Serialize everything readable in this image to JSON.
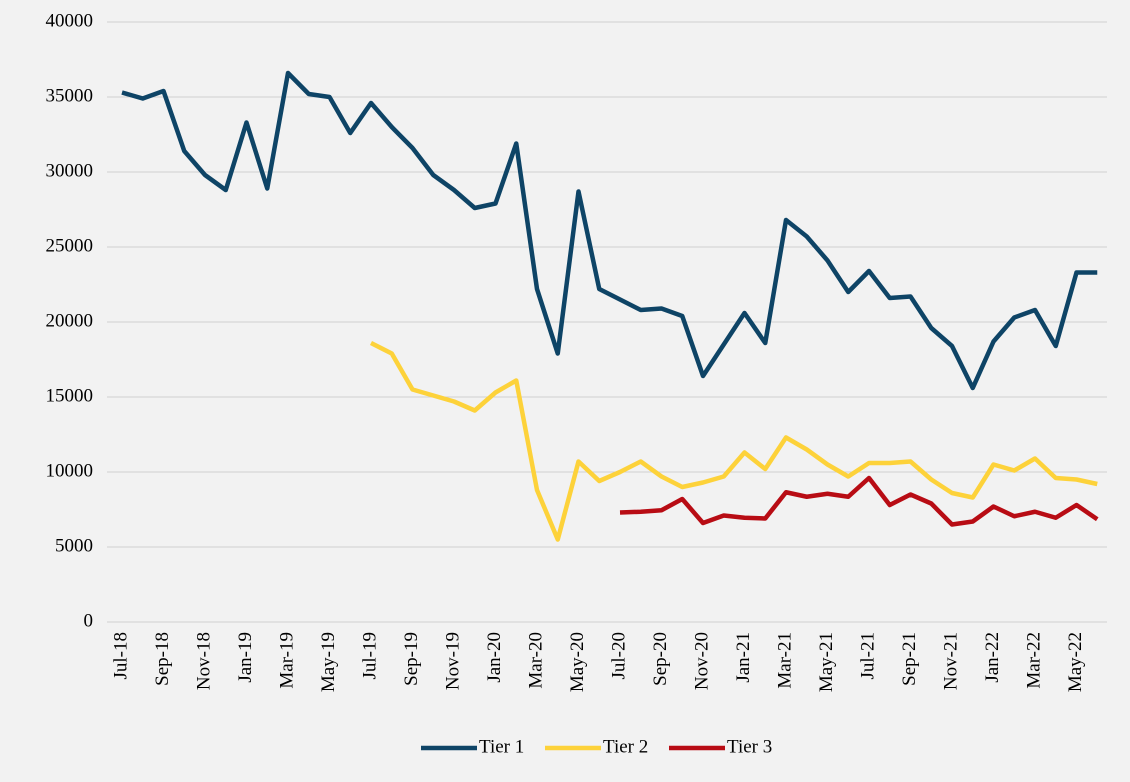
{
  "chart_data": {
    "type": "line",
    "categories": [
      "Jul-18",
      null,
      "Sep-18",
      null,
      "Nov-18",
      null,
      "Jan-19",
      null,
      "Mar-19",
      null,
      "May-19",
      null,
      "Jul-19",
      null,
      "Sep-19",
      null,
      "Nov-19",
      null,
      "Jan-20",
      null,
      "Mar-20",
      null,
      "May-20",
      null,
      "Jul-20",
      null,
      "Sep-20",
      null,
      "Nov-20",
      null,
      "Jan-21",
      null,
      "Mar-21",
      null,
      "May-21",
      null,
      "Jul-21",
      null,
      "Sep-21",
      null,
      "Nov-21",
      null,
      "Jan-22",
      null,
      "Mar-22",
      null,
      "May-22",
      null
    ],
    "series": [
      {
        "name": "Tier 1",
        "color": "#0e4466",
        "values": [
          35300,
          34900,
          35400,
          31400,
          29800,
          28800,
          33300,
          28900,
          36600,
          35200,
          35000,
          32600,
          34600,
          33000,
          31600,
          29800,
          28800,
          27600,
          27900,
          31900,
          22200,
          17900,
          28700,
          22200,
          21500,
          20800,
          20900,
          20400,
          16400,
          18500,
          20600,
          18600,
          26800,
          25700,
          24100,
          22000,
          23400,
          21600,
          21700,
          19600,
          18400,
          15600,
          18700,
          20300,
          20800,
          18400,
          23300,
          23300
        ]
      },
      {
        "name": "Tier 2",
        "color": "#fdd23a",
        "values": [
          null,
          null,
          null,
          null,
          null,
          null,
          null,
          null,
          null,
          null,
          null,
          null,
          18600,
          17900,
          15500,
          15100,
          14700,
          14100,
          15300,
          16100,
          8800,
          5500,
          10700,
          9400,
          10000,
          10700,
          9700,
          9000,
          9300,
          9700,
          11300,
          10200,
          12300,
          11500,
          10500,
          9700,
          10600,
          10600,
          10700,
          9500,
          8600,
          8300,
          10500,
          10100,
          10900,
          9600,
          9500,
          9200
        ]
      },
      {
        "name": "Tier 3",
        "color": "#b80c14",
        "values": [
          null,
          null,
          null,
          null,
          null,
          null,
          null,
          null,
          null,
          null,
          null,
          null,
          null,
          null,
          null,
          null,
          null,
          null,
          null,
          null,
          null,
          null,
          null,
          null,
          7300,
          7350,
          7450,
          8200,
          6600,
          7100,
          6950,
          6900,
          8650,
          8350,
          8550,
          8350,
          9600,
          7800,
          8500,
          7900,
          6500,
          6700,
          7700,
          7050,
          7350,
          6950,
          7800,
          6850
        ]
      }
    ],
    "ylim": [
      0,
      40000
    ],
    "yticks": [
      0,
      5000,
      10000,
      15000,
      20000,
      25000,
      30000,
      35000,
      40000
    ],
    "grid": true,
    "legend": "bottom"
  }
}
